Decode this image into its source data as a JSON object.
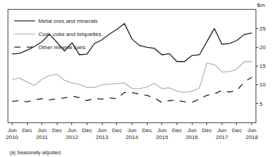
{
  "chart_data": {
    "type": "line",
    "y_label": "$m",
    "note": "(a) Seasonally adjusted.",
    "categories": [
      "Jun\n2010",
      null,
      "Dec",
      null,
      "Jun\n2011",
      null,
      "Dec",
      null,
      "Jun\n2012",
      null,
      "Dec",
      null,
      "Jun\n2013",
      null,
      "Dec",
      null,
      "Jun\n2014",
      null,
      "Dec",
      null,
      "Jun\n2015",
      null,
      "Dec",
      null,
      "Jun\n2016",
      null,
      "Dec",
      null,
      "Jun\n2017",
      null,
      "Dec",
      null,
      "Jun\n2018"
    ],
    "series": [
      {
        "name": "Metal ores and minerals",
        "color": "#1a1a1a",
        "line_style": "solid",
        "values": [
          18.2,
          18.4,
          19.2,
          20.2,
          21.5,
          23.5,
          21.3,
          19.0,
          21.2,
          18.0,
          18.2,
          21.0,
          22.0,
          23.5,
          24.8,
          26.3,
          22.2,
          20.5,
          20.0,
          19.7,
          18.0,
          18.3,
          16.2,
          16.2,
          17.8,
          18.0,
          21.5,
          25.0,
          20.8,
          21.0,
          21.8,
          23.4,
          23.8
        ]
      },
      {
        "name": "Coal, coke and briquettes",
        "color": "#b3b3b3",
        "line_style": "solid",
        "values": [
          11.5,
          11.8,
          10.8,
          9.8,
          11.5,
          12.5,
          12.8,
          11.2,
          10.5,
          10.1,
          9.3,
          9.3,
          10.0,
          10.2,
          10.3,
          10.5,
          9.0,
          9.0,
          9.4,
          10.4,
          9.0,
          9.2,
          8.3,
          8.0,
          8.3,
          9.2,
          15.8,
          15.4,
          13.4,
          13.5,
          14.2,
          16.2,
          16.2
        ]
      },
      {
        "name": "Other mineral fuels",
        "color": "#1a1a1a",
        "line_style": "dash",
        "values": [
          5.6,
          5.8,
          5.5,
          6.0,
          6.3,
          6.0,
          6.3,
          6.5,
          7.0,
          6.6,
          5.8,
          6.4,
          6.2,
          6.5,
          6.3,
          8.0,
          8.0,
          7.5,
          7.2,
          6.5,
          5.3,
          5.8,
          5.9,
          5.5,
          5.3,
          6.2,
          7.2,
          7.6,
          8.5,
          8.1,
          8.5,
          10.8,
          12.0
        ]
      }
    ],
    "ylim": [
      0,
      30
    ],
    "yticks": [
      5,
      10,
      15,
      20,
      25
    ],
    "grid": false,
    "legend": "top left"
  }
}
